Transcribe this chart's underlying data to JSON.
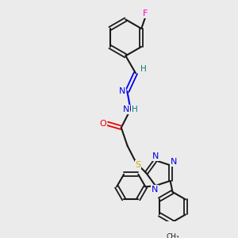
{
  "bg_color": "#ebebeb",
  "bond_color": "#1a1a1a",
  "atom_colors": {
    "F": "#ff00cc",
    "N": "#0000ee",
    "O": "#ee0000",
    "S": "#ccaa00",
    "H": "#008080",
    "C": "#1a1a1a"
  },
  "figsize": [
    3.0,
    3.0
  ],
  "dpi": 100,
  "xlim": [
    0,
    10
  ],
  "ylim": [
    0,
    10
  ]
}
